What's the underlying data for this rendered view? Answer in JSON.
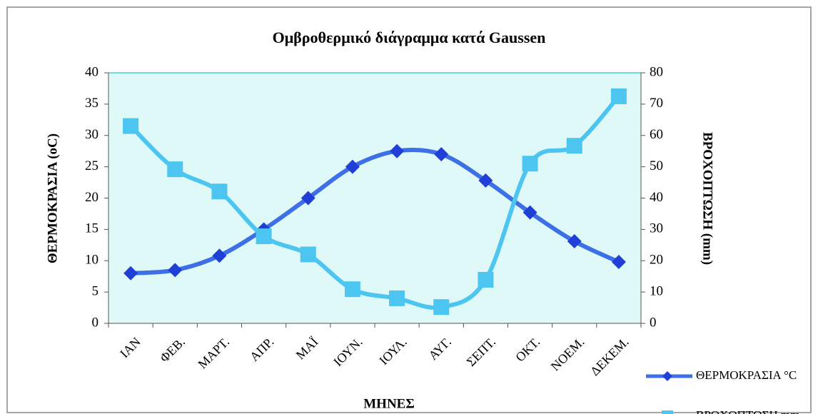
{
  "chart_data": {
    "type": "line",
    "title": "Ομβροθερμικό διάγραμμα κατά Gaussen",
    "x_label": "ΜΗΝΕΣ",
    "y_label": "ΘΕΡΜΟΚΡΑΣΙΑ (oC)",
    "y2_label": "ΒΡΟΧΟΠΤΩΣΗ (mm)",
    "categories": [
      "ΙΑΝ",
      "ΦΕΒ.",
      "ΜΑΡΤ.",
      "ΑΠΡ.",
      "ΜΑΪ",
      "ΙΟΥΝ.",
      "ΙΟΥΛ.",
      "ΑΥΓ.",
      "ΣΕΠΤ.",
      "ΟΚΤ.",
      "ΝΟΕΜ.",
      "ΔΕΚΕΜ."
    ],
    "series": [
      {
        "name": "ΘΕΡΜΟΚΡΑΣΙΑ °C",
        "color": "#3d6fe6",
        "marker_color": "#1f3fd6",
        "marker": "diamond",
        "values": [
          8,
          8.5,
          10.8,
          15,
          20,
          25,
          27.5,
          27,
          22.8,
          17.7,
          13.1,
          9.8
        ]
      },
      {
        "name": "ΒΡΟΧΟΠΤΩΣΗ mm",
        "color": "#4cc6f0",
        "marker_color": "#4cc6f0",
        "marker": "square",
        "axis": "y2",
        "values": [
          63,
          49.2,
          42.1,
          27.8,
          22,
          10.9,
          8,
          5.2,
          13.9,
          51,
          56.7,
          72.5
        ]
      }
    ],
    "ylim": [
      0,
      40
    ],
    "yticks": [
      0,
      5,
      10,
      15,
      20,
      25,
      30,
      35,
      40
    ],
    "y2lim": [
      0,
      80
    ],
    "y2ticks": [
      0,
      10,
      20,
      30,
      40,
      50,
      60,
      70,
      80
    ],
    "plot_background": "#dff9f9",
    "legend": "right"
  }
}
